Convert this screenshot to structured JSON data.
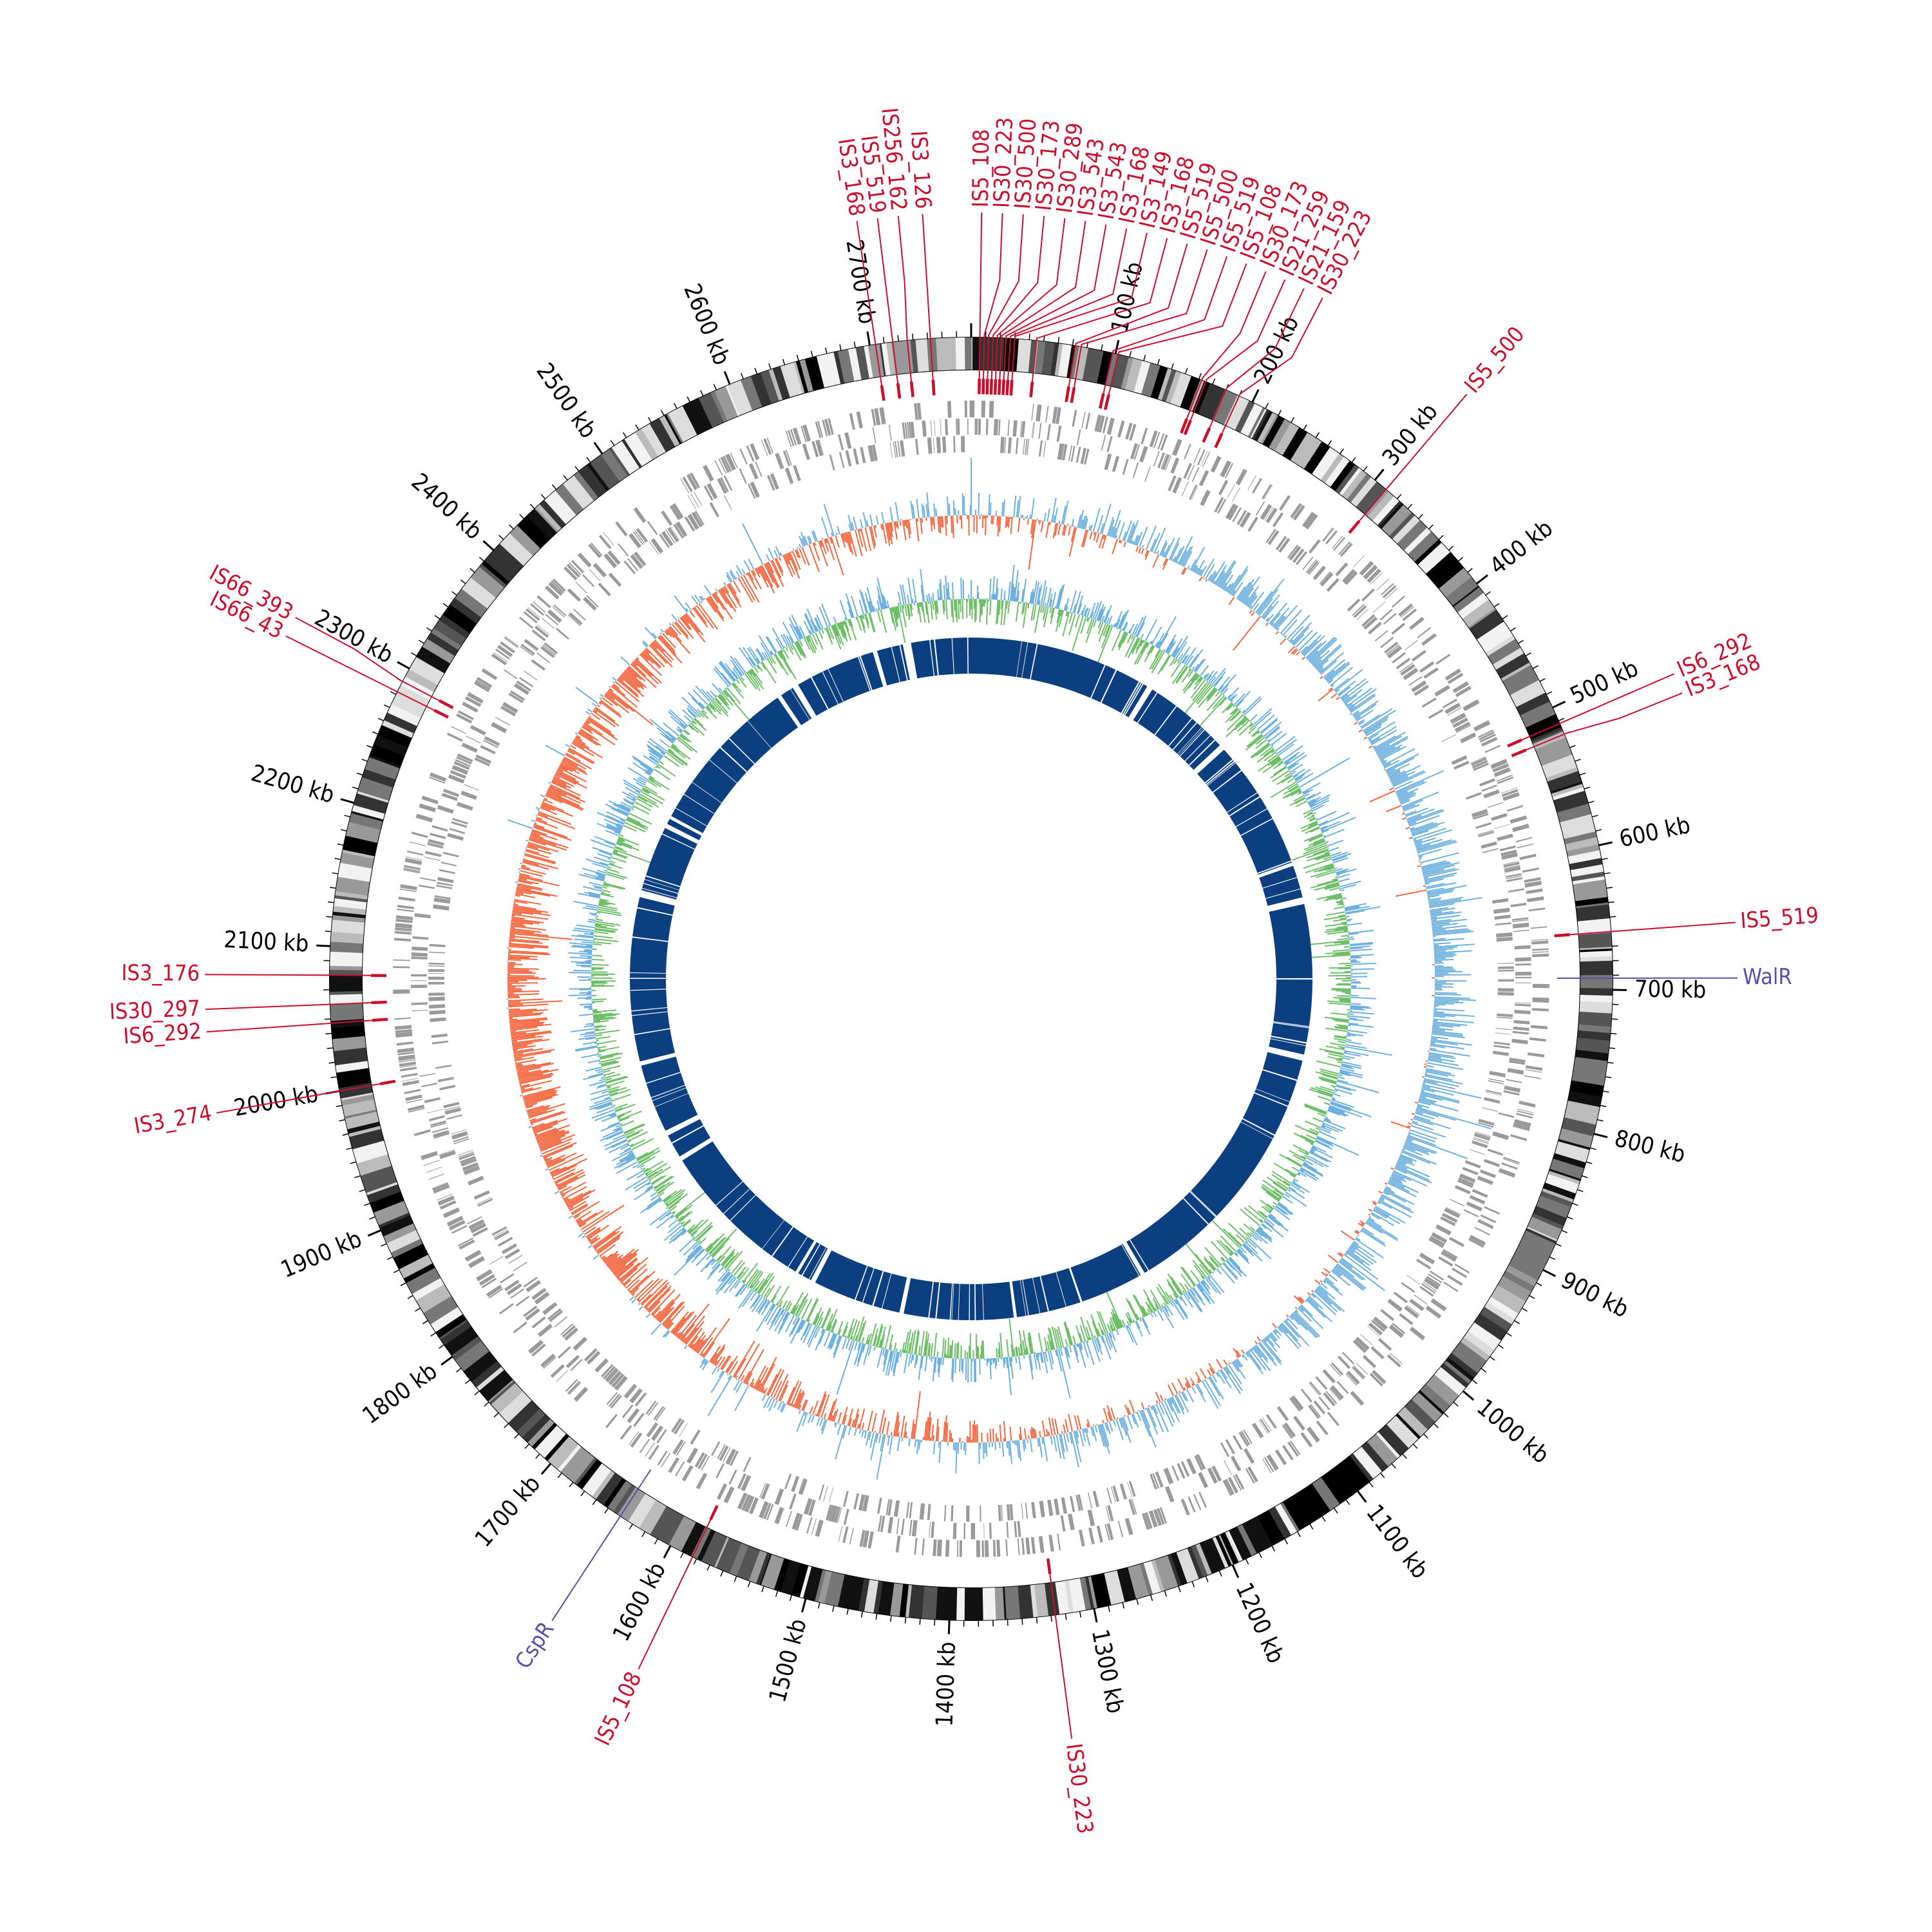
{
  "genome": {
    "length_kb": 2770,
    "tick_labels": [
      "100 kb",
      "200 kb",
      "300 kb",
      "400 kb",
      "500 kb",
      "600 kb",
      "700 kb",
      "800 kb",
      "900 kb",
      "1000 kb",
      "1100 kb",
      "1200 kb",
      "1300 kb",
      "1400 kb",
      "1500 kb",
      "1600 kb",
      "1700 kb",
      "1800 kb",
      "1900 kb",
      "2000 kb",
      "2100 kb",
      "2200 kb",
      "2300 kb",
      "2400 kb",
      "2500 kb",
      "2600 kb",
      "2700 kb"
    ]
  },
  "colors": {
    "is_element": "#c8102e",
    "regulator": "#5b4ea8",
    "gene_track": "#9a9a9a",
    "skew_positive": "#f4673f",
    "skew_negative": "#6fb1de",
    "gc_positive": "#6fbe6a",
    "gc_negative": "#6fb1de",
    "core_ring": "#0b3f7f",
    "ideogram": "#000000"
  },
  "is_elements": [
    {
      "label": "IS3_168",
      "kb": 2704
    },
    {
      "label": "IS5_519",
      "kb": 2716
    },
    {
      "label": "IS256_162",
      "kb": 2726
    },
    {
      "label": "IS3_126",
      "kb": 2742
    },
    {
      "label": "IS5_108",
      "kb": 6
    },
    {
      "label": "IS30_223",
      "kb": 9
    },
    {
      "label": "IS30_500",
      "kb": 12
    },
    {
      "label": "IS30_173",
      "kb": 15
    },
    {
      "label": "IS30_289",
      "kb": 18
    },
    {
      "label": "IS3_543",
      "kb": 21
    },
    {
      "label": "IS3_543",
      "kb": 24
    },
    {
      "label": "IS3_168",
      "kb": 27
    },
    {
      "label": "IS3_149",
      "kb": 30
    },
    {
      "label": "IS3_168",
      "kb": 45
    },
    {
      "label": "IS5_519",
      "kb": 72
    },
    {
      "label": "IS5_500",
      "kb": 76
    },
    {
      "label": "IS5_519",
      "kb": 98
    },
    {
      "label": "IS5_108",
      "kb": 102
    },
    {
      "label": "IS30_173",
      "kb": 162
    },
    {
      "label": "IS21_259",
      "kb": 165
    },
    {
      "label": "IS21_159",
      "kb": 180
    },
    {
      "label": "IS30_223",
      "kb": 190
    },
    {
      "label": "IS5_500",
      "kb": 310
    },
    {
      "label": "IS6_292",
      "kb": 512
    },
    {
      "label": "IS3_168",
      "kb": 520
    },
    {
      "label": "IS5_519",
      "kb": 660
    },
    {
      "label": "IS30_223",
      "kb": 1327
    },
    {
      "label": "IS5_108",
      "kb": 1583
    },
    {
      "label": "IS3_274",
      "kb": 2000
    },
    {
      "label": "IS6_292",
      "kb": 2047
    },
    {
      "label": "IS30_297",
      "kb": 2060
    },
    {
      "label": "IS3_176",
      "kb": 2080
    },
    {
      "label": "IS66_43",
      "kb": 2282
    },
    {
      "label": "IS66_393",
      "kb": 2290
    }
  ],
  "regulators": [
    {
      "label": "WalR",
      "kb": 692
    },
    {
      "label": "CspR",
      "kb": 1640
    }
  ]
}
